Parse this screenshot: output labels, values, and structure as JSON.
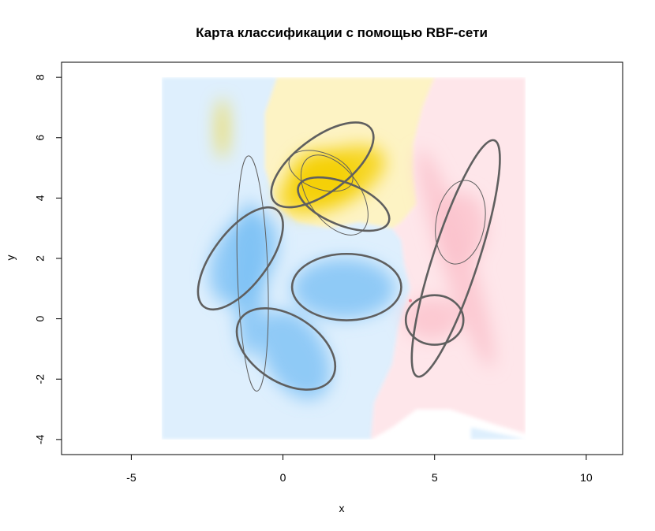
{
  "chart_data": {
    "type": "heatmap",
    "title": "Карта классификации с помощью RBF-сети",
    "xlabel": "x",
    "ylabel": "y",
    "xlim": [
      -7.3,
      11.2
    ],
    "ylim": [
      -4.5,
      8.5
    ],
    "xticks": [
      -5,
      0,
      5,
      10
    ],
    "yticks": [
      -4,
      -2,
      0,
      2,
      4,
      6,
      8
    ],
    "grid": false,
    "legend": "none",
    "map_extent": {
      "x": [
        -4,
        8
      ],
      "y": [
        -4,
        8
      ]
    },
    "classes": [
      {
        "color": "#deeffd",
        "core_color": "#7cc0f5"
      },
      {
        "color": "#fdf3c4",
        "core_color": "#f5d000"
      },
      {
        "color": "#fee6ea",
        "core_color": "#fbc2cc"
      }
    ],
    "class_regions": [
      {
        "class": 0,
        "polygon": [
          [
            -4,
            8
          ],
          [
            -0.2,
            8
          ],
          [
            -0.6,
            6.8
          ],
          [
            -0.6,
            5
          ],
          [
            -0.2,
            3.7
          ],
          [
            0.5,
            3.2
          ],
          [
            1.5,
            3
          ],
          [
            2.5,
            3.2
          ],
          [
            3.6,
            3
          ],
          [
            3.9,
            2.6
          ],
          [
            4,
            1.8
          ],
          [
            4.2,
            1
          ],
          [
            3.8,
            -0.3
          ],
          [
            3.6,
            -1.5
          ],
          [
            3,
            -2.8
          ],
          [
            2.9,
            -4
          ],
          [
            -4,
            -4
          ]
        ]
      },
      {
        "class": 1,
        "polygon": [
          [
            -0.2,
            8
          ],
          [
            5,
            8
          ],
          [
            4.6,
            7
          ],
          [
            4.3,
            5.8
          ],
          [
            4.3,
            4.8
          ],
          [
            4.4,
            3.8
          ],
          [
            3.9,
            3.2
          ],
          [
            3.6,
            3
          ],
          [
            2.5,
            3.2
          ],
          [
            1.5,
            3
          ],
          [
            0.5,
            3.2
          ],
          [
            -0.2,
            3.7
          ],
          [
            -0.6,
            5
          ],
          [
            -0.6,
            6.8
          ]
        ]
      },
      {
        "class": 2,
        "polygon": [
          [
            5,
            8
          ],
          [
            8,
            8
          ],
          [
            8,
            -3.8
          ],
          [
            7,
            -3.5
          ],
          [
            5.5,
            -3
          ],
          [
            4.4,
            -3
          ],
          [
            3.6,
            -3.6
          ],
          [
            2.9,
            -4
          ],
          [
            3,
            -2.8
          ],
          [
            3.6,
            -1.5
          ],
          [
            3.8,
            -0.3
          ],
          [
            4.2,
            1
          ],
          [
            4,
            1.8
          ],
          [
            3.9,
            2.6
          ],
          [
            3.6,
            3
          ],
          [
            3.9,
            3.2
          ],
          [
            4.4,
            3.8
          ],
          [
            4.3,
            4.8
          ],
          [
            4.3,
            5.8
          ],
          [
            4.6,
            7
          ]
        ]
      },
      {
        "class": 0,
        "polygon": [
          [
            6.2,
            -3.6
          ],
          [
            8,
            -4
          ],
          [
            6.2,
            -4
          ]
        ]
      }
    ],
    "class_cores": [
      {
        "class": 0,
        "cx": -1.3,
        "cy": 2.0,
        "rx": 1.0,
        "ry": 1.6,
        "angle": -25
      },
      {
        "class": 0,
        "cx": 2.0,
        "cy": 1.0,
        "rx": 1.7,
        "ry": 1.0,
        "angle": 0
      },
      {
        "class": 0,
        "cx": 0.4,
        "cy": -1.2,
        "rx": 1.0,
        "ry": 1.6,
        "angle": 30
      },
      {
        "class": 0,
        "cx": -1.1,
        "cy": 1.3,
        "rx": 0.5,
        "ry": 2.6,
        "angle": 0
      },
      {
        "class": 1,
        "cx": 1.6,
        "cy": 4.6,
        "rx": 1.9,
        "ry": 0.9,
        "angle": 25
      },
      {
        "class": 1,
        "cx": 1.3,
        "cy": 4.7,
        "rx": 1.1,
        "ry": 0.9,
        "angle": 0
      },
      {
        "class": 1,
        "cx": -2.0,
        "cy": 6.3,
        "rx": 0.15,
        "ry": 1.0,
        "angle": 0
      },
      {
        "class": 2,
        "cx": 5.9,
        "cy": 3.0,
        "rx": 0.8,
        "ry": 1.2,
        "angle": 0
      },
      {
        "class": 2,
        "cx": 4.9,
        "cy": 0.0,
        "rx": 0.9,
        "ry": 0.7,
        "angle": 0
      },
      {
        "class": 2,
        "cx": 5.7,
        "cy": 2.0,
        "rx": 0.5,
        "ry": 3.8,
        "angle": 18
      }
    ],
    "ellipses": [
      {
        "cx": 1.3,
        "cy": 5.1,
        "rx": 2.0,
        "ry": 0.9,
        "angle": 37,
        "weight": "thick"
      },
      {
        "cx": 2.0,
        "cy": 3.8,
        "rx": 1.6,
        "ry": 0.7,
        "angle": -22,
        "weight": "thick"
      },
      {
        "cx": 1.7,
        "cy": 4.1,
        "rx": 1.5,
        "ry": 0.85,
        "angle": -55,
        "weight": "thin"
      },
      {
        "cx": 1.25,
        "cy": 4.9,
        "rx": 1.1,
        "ry": 0.6,
        "angle": -20,
        "weight": "thin"
      },
      {
        "cx": -1.4,
        "cy": 2.0,
        "rx": 2.0,
        "ry": 0.9,
        "angle": 53,
        "weight": "thick"
      },
      {
        "cx": 2.1,
        "cy": 1.05,
        "rx": 1.8,
        "ry": 1.1,
        "angle": 0,
        "weight": "thick"
      },
      {
        "cx": 0.1,
        "cy": -1.0,
        "rx": 1.8,
        "ry": 1.1,
        "angle": -33,
        "weight": "thick"
      },
      {
        "cx": -1.0,
        "cy": 1.5,
        "rx": 0.5,
        "ry": 3.9,
        "angle": 2,
        "weight": "thin"
      },
      {
        "cx": 5.7,
        "cy": 2.0,
        "rx": 4.1,
        "ry": 0.75,
        "angle": 72,
        "weight": "thick"
      },
      {
        "cx": 5.85,
        "cy": 3.2,
        "rx": 0.8,
        "ry": 1.4,
        "angle": -10,
        "weight": "thin"
      },
      {
        "cx": 5.0,
        "cy": -0.04,
        "rx": 0.95,
        "ry": 0.82,
        "angle": 0,
        "weight": "thick"
      }
    ],
    "points": [
      {
        "x": 4.2,
        "y": 0.6,
        "color": "#f08898"
      }
    ]
  }
}
